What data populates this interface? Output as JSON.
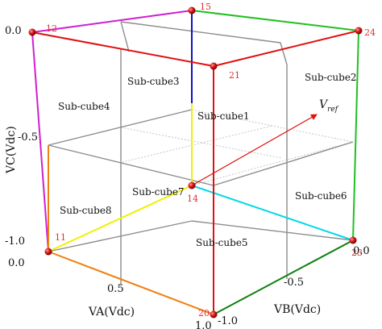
{
  "subcubes": [
    "Sub-cube1",
    "Sub-cube2",
    "Sub-cube3",
    "Sub-cube4",
    "Sub-cube5",
    "Sub-cube6",
    "Sub-cube7",
    "Sub-cube8"
  ],
  "nodes": [
    "11",
    "12",
    "14",
    "15",
    "20",
    "21",
    "23",
    "24"
  ],
  "vector_label": "V",
  "vector_subscript": "ref",
  "axis_labels": {
    "vc": "VC(Vdc)",
    "va": "VA(Vdc)",
    "vb": "VB(Vdc)"
  },
  "ticks": {
    "vc_0": "0.0",
    "vc_m05": "-0.5",
    "vc_m1": "-1.0",
    "va_0": "0.0",
    "va_05": "0.5",
    "va_1": "1.0",
    "vb_m1": "-1.0",
    "vb_m05": "-0.5",
    "vb_0": "0.0"
  },
  "colors": {
    "magenta": "#d020d0",
    "blue": "#1010c0",
    "green": "#20c020",
    "red": "#e01010",
    "yellow": "#f0f000",
    "orange": "#f08010",
    "cyan": "#00d8e8",
    "darkgreen": "#108010",
    "grid": "#8c8c8c",
    "node_fill": "#d01010",
    "node_text": "#e03030"
  }
}
